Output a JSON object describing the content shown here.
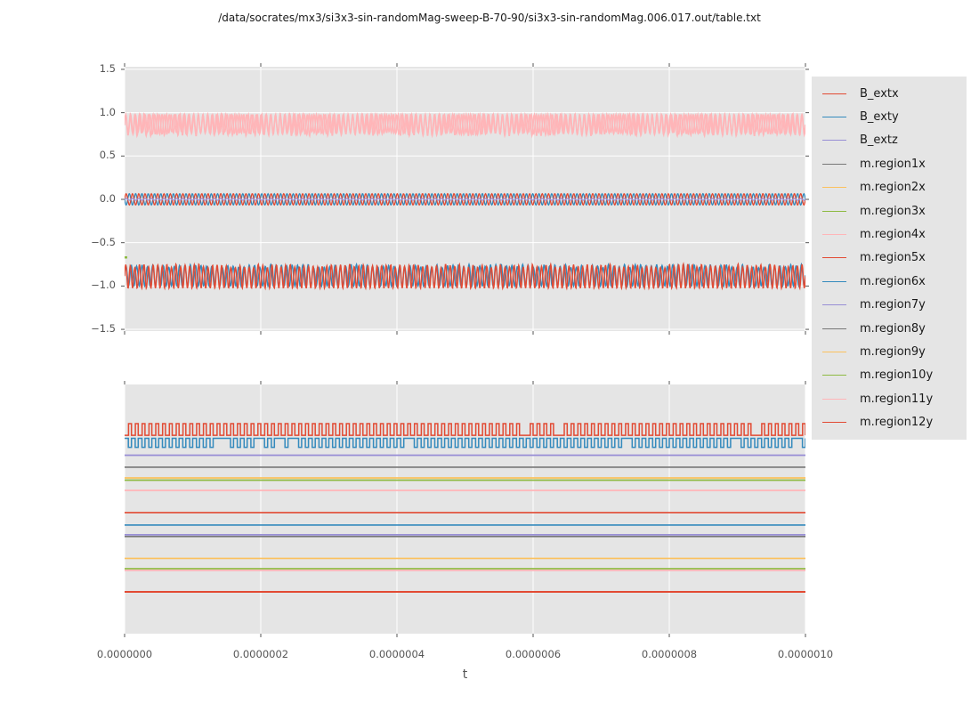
{
  "figure": {
    "title": "/data/socrates/mx3/si3x3-sin-randomMag-sweep-B-70-90/si3x3-sin-randomMag.006.017.out/table.txt",
    "xlabel": "t",
    "colors": {
      "background": "#ffffff",
      "axes_background": "#e5e5e5",
      "grid": "#ffffff",
      "tick_mark": "#555555",
      "tick_text": "#555555",
      "title_text": "#1a1a1a",
      "legend_background": "#e5e5e5",
      "legend_text": "#1a1a1a"
    }
  },
  "legend": {
    "items": [
      {
        "label": "B_extx",
        "color": "#e24a33"
      },
      {
        "label": "B_exty",
        "color": "#348abd"
      },
      {
        "label": "B_extz",
        "color": "#988ed5"
      },
      {
        "label": "m.region1x",
        "color": "#777777"
      },
      {
        "label": "m.region2x",
        "color": "#fbc15e"
      },
      {
        "label": "m.region3x",
        "color": "#8eba42"
      },
      {
        "label": "m.region4x",
        "color": "#ffb5b8"
      },
      {
        "label": "m.region5x",
        "color": "#e24a33"
      },
      {
        "label": "m.region6x",
        "color": "#348abd"
      },
      {
        "label": "m.region7y",
        "color": "#988ed5"
      },
      {
        "label": "m.region8y",
        "color": "#777777"
      },
      {
        "label": "m.region9y",
        "color": "#fbc15e"
      },
      {
        "label": "m.region10y",
        "color": "#8eba42"
      },
      {
        "label": "m.region11y",
        "color": "#ffb5b8"
      },
      {
        "label": "m.region12y",
        "color": "#e24a33"
      }
    ]
  },
  "chart_data": [
    {
      "type": "line",
      "panel": "top",
      "xlim": [
        0,
        1e-06
      ],
      "ylim": [
        -1.52,
        1.53
      ],
      "grid": "both",
      "xticks": {
        "values": [
          0,
          2e-07,
          4e-07,
          6e-07,
          8e-07,
          1e-06
        ],
        "labels": []
      },
      "yticks": {
        "values": [
          1.5,
          1.0,
          0.5,
          0.0,
          -0.5,
          -1.0,
          -1.5
        ],
        "labels": [
          "1.5",
          "1.0",
          "0.5",
          "0.0",
          "−0.5",
          "−1.0",
          "−1.5"
        ]
      },
      "series": [
        {
          "name": "m.region4x",
          "color": "#ffb5b8",
          "kind": "osc",
          "center": 0.855,
          "amp": 0.125,
          "cycles": 150,
          "ragged": "low",
          "seed": 1,
          "width": 1.5,
          "y_range": [
            0.73,
            0.98
          ]
        },
        {
          "name": "m.region11y",
          "color": "#ffb5b8",
          "kind": "osc",
          "center": 0.862,
          "amp": 0.115,
          "cycles": 141,
          "ragged": "low",
          "seed": 7,
          "width": 1.5,
          "y_range": [
            0.75,
            0.98
          ]
        },
        {
          "name": "m.region6x",
          "color": "#348abd",
          "kind": "osc",
          "center": -0.875,
          "amp": 0.125,
          "cycles": 127,
          "ragged": "high",
          "seed": 11,
          "width": 1.4,
          "y_range": [
            -1.0,
            -0.75
          ]
        },
        {
          "name": "m.region5x",
          "color": "#e24a33",
          "kind": "osc",
          "center": -0.885,
          "amp": 0.14,
          "cycles": 149,
          "ragged": "high",
          "seed": 5,
          "width": 1.4,
          "y_range": [
            -1.03,
            -0.74
          ]
        },
        {
          "name": "green-start-transient",
          "color": "#8eba42",
          "kind": "startdot",
          "y": -0.67,
          "width": 2.5
        },
        {
          "name": "B_exty",
          "color": "#348abd",
          "kind": "sine",
          "center": 0,
          "amp": 0.065,
          "cycles": 108,
          "phase": 3.14159,
          "width": 1.3,
          "y_range": [
            -0.065,
            0.065
          ]
        },
        {
          "name": "B_extx",
          "color": "#e24a33",
          "kind": "sine",
          "center": 0,
          "amp": 0.065,
          "cycles": 108,
          "phase": 0,
          "width": 1.3,
          "y_range": [
            -0.065,
            0.065
          ]
        },
        {
          "name": "B_extz",
          "color": "#988ed5",
          "kind": "sine",
          "center": 0,
          "amp": 0.01,
          "cycles": 108,
          "phase": 0,
          "width": 1.3,
          "y_range": [
            -0.01,
            0.01
          ]
        }
      ]
    },
    {
      "type": "line",
      "panel": "bottom",
      "xlim": [
        0,
        1e-06
      ],
      "ylim": [
        0,
        1
      ],
      "grid": "x",
      "xticks": {
        "values": [
          0,
          2e-07,
          4e-07,
          6e-07,
          8e-07,
          1e-06
        ],
        "labels": [
          "0.0000000",
          "0.0000002",
          "0.0000004",
          "0.0000006",
          "0.0000008",
          "0.0000010"
        ]
      },
      "yticks": {
        "values": [],
        "labels": []
      },
      "series": [
        {
          "name": "square-red",
          "color": "#e24a33",
          "kind": "square",
          "low": 0.796,
          "high": 0.843,
          "cycles": 100,
          "duty": 0.42,
          "invert": false,
          "skip_p": 0.04,
          "seed": 3,
          "width": 1.5
        },
        {
          "name": "square-blue",
          "color": "#348abd",
          "kind": "square",
          "low": 0.748,
          "high": 0.784,
          "cycles": 100,
          "duty": 0.45,
          "invert": true,
          "skip_p": 0.12,
          "seed": 9,
          "width": 1.5
        },
        {
          "name": "flat-purple-1",
          "color": "#988ed5",
          "kind": "flat",
          "y": 0.716,
          "width": 1.7
        },
        {
          "name": "flat-gray-1",
          "color": "#777777",
          "kind": "flat",
          "y": 0.668,
          "width": 1.7
        },
        {
          "name": "flat-yellow-1",
          "color": "#fbc15e",
          "kind": "flat",
          "y": 0.625,
          "width": 1.7
        },
        {
          "name": "flat-green-1",
          "color": "#8eba42",
          "kind": "flat",
          "y": 0.616,
          "width": 1.7
        },
        {
          "name": "flat-pink-1",
          "color": "#ffb5b8",
          "kind": "flat",
          "y": 0.575,
          "width": 1.7
        },
        {
          "name": "flat-red-2",
          "color": "#e24a33",
          "kind": "flat",
          "y": 0.486,
          "width": 1.7
        },
        {
          "name": "flat-blue-2",
          "color": "#348abd",
          "kind": "flat",
          "y": 0.436,
          "width": 1.7
        },
        {
          "name": "flat-gray-2",
          "color": "#777777",
          "kind": "flat",
          "y": 0.39,
          "width": 1.7
        },
        {
          "name": "flat-purple-2",
          "color": "#988ed5",
          "kind": "flat",
          "y": 0.397,
          "width": 1.7
        },
        {
          "name": "flat-orange-2",
          "color": "#fbc15e",
          "kind": "flat",
          "y": 0.302,
          "width": 1.7
        },
        {
          "name": "flat-pink-2",
          "color": "#ffb5b8",
          "kind": "flat",
          "y": 0.254,
          "width": 1.7
        },
        {
          "name": "flat-green-2",
          "color": "#8eba42",
          "kind": "flat",
          "y": 0.261,
          "width": 1.7
        },
        {
          "name": "flat-red-3",
          "color": "#e24a33",
          "kind": "flat",
          "y": 0.168,
          "width": 2.0
        }
      ]
    }
  ]
}
